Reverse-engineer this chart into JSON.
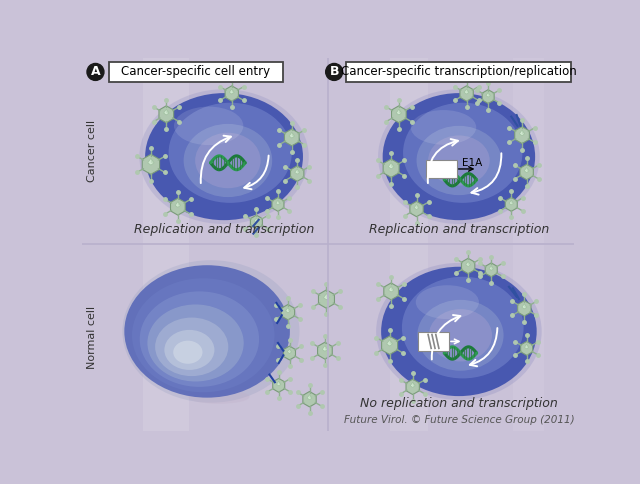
{
  "bg_color": "#cac2d8",
  "title_A": "Cancer-specific cell entry",
  "title_B": "Cancer-specific transcription/replication",
  "label_A": "A",
  "label_B": "B",
  "row_label_top": "Cancer cell",
  "row_label_bottom": "Normal cell",
  "caption_A_top": "Replication and transcription",
  "caption_B_top": "Replication and transcription",
  "caption_B_bottom": "No replication and transcription",
  "e1a_label": "E1A",
  "footer": "Future Virol. © Future Science Group (2011)",
  "cell_blue_outer": "#4858b0",
  "cell_blue_mid": "#6070c0",
  "cell_blue_inner": "#8090cc",
  "cell_highlight": "#9098c8",
  "cell_light": "#b0b8d8",
  "nucleus_dark": "#5060a8",
  "nucleus_mid": "#7080b8",
  "nucleus_light": "#9098c8",
  "normal_outer": "#5868b8",
  "normal_mid": "#7888c8",
  "normal_light1": "#90a0cc",
  "normal_light2": "#a8b4d4",
  "normal_lightest": "#c0cae0",
  "dna_color1": "#1a7a3a",
  "dna_color2": "#2a9a50",
  "virus_body": "#b0c8b0",
  "virus_dark": "#7a9a7a",
  "virus_spike": "#90b090",
  "virus_gem": "#d0e8d0",
  "virus_gem_dark": "#a0c0a0",
  "arrow_white": "#ffffff",
  "box_edge": "#555555",
  "text_dark": "#333333",
  "divider": "#b8b0cc"
}
